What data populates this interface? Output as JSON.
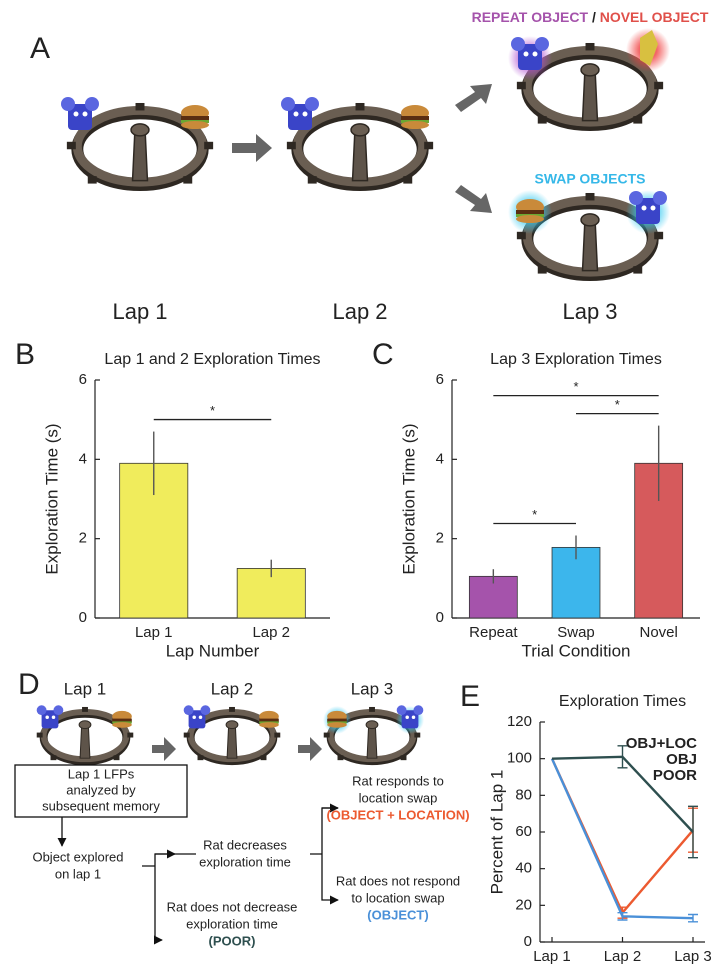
{
  "panel_a": {
    "label": "A",
    "repeat": "REPEAT OBJECT",
    "slash": "/",
    "novel": "NOVEL OBJECT",
    "swap": "SWAP OBJECTS",
    "laps": [
      "Lap 1",
      "Lap 2",
      "Lap 3"
    ]
  },
  "panel_d": {
    "label": "D",
    "laps": [
      "Lap 1",
      "Lap 2",
      "Lap 3"
    ],
    "start": [
      "Lap 1 LFPs",
      "analyzed by",
      "subsequent memory"
    ],
    "explored": [
      "Object explored",
      "on lap 1"
    ],
    "decrease": [
      "Rat decreases",
      "exploration time"
    ],
    "no_decrease": [
      "Rat does not decrease",
      "exploration time"
    ],
    "poor": "(POOR)",
    "responds": [
      "Rat responds to",
      "location swap"
    ],
    "objloc": "(OBJECT + LOCATION)",
    "no_respond": [
      "Rat does not respond",
      "to location swap"
    ],
    "obj": "(OBJECT)"
  },
  "chart_data": [
    {
      "type": "bar",
      "panel": "B",
      "title": "Lap 1 and 2 Exploration Times",
      "x_label": "Lap Number",
      "y_label": "Exploration Time (s)",
      "categories": [
        "Lap 1",
        "Lap 2"
      ],
      "values": [
        3.9,
        1.25
      ],
      "errors": [
        0.8,
        0.22
      ],
      "colors": [
        "#f0ec5c",
        "#f0ec5c"
      ],
      "ylim": [
        0,
        6
      ],
      "yticks": [
        0,
        2,
        4,
        6
      ],
      "significance": [
        {
          "label": "*",
          "from": 0,
          "to": 1
        }
      ]
    },
    {
      "type": "bar",
      "panel": "C",
      "title": "Lap 3 Exploration Times",
      "x_label": "Trial Condition",
      "y_label": "Exploration Time (s)",
      "categories": [
        "Repeat",
        "Swap",
        "Novel"
      ],
      "values": [
        1.05,
        1.78,
        3.9
      ],
      "errors": [
        0.18,
        0.3,
        0.95
      ],
      "colors": [
        "#a553ab",
        "#3cb6ec",
        "#d65a5c"
      ],
      "ylim": [
        0,
        6
      ],
      "yticks": [
        0,
        2,
        4,
        6
      ],
      "significance": [
        {
          "label": "*",
          "from": 0,
          "to": 1
        },
        {
          "label": "*",
          "from": 1,
          "to": 2
        },
        {
          "label": "*",
          "from": 0,
          "to": 2
        }
      ]
    },
    {
      "type": "line",
      "panel": "E",
      "title": "Exploration Times",
      "y_label": "Percent of Lap 1",
      "categories": [
        "Lap 1",
        "Lap 2",
        "Lap 3"
      ],
      "series": [
        {
          "name": "OBJ+LOC",
          "color": "#ec5a30",
          "values": [
            100,
            16,
            61
          ],
          "errors": [
            null,
            3,
            12
          ]
        },
        {
          "name": "OBJ",
          "color": "#4a90d8",
          "values": [
            100,
            14,
            13
          ],
          "errors": [
            null,
            2,
            2
          ]
        },
        {
          "name": "POOR",
          "color": "#2e4f4f",
          "values": [
            100,
            101,
            60
          ],
          "errors": [
            null,
            6,
            14
          ]
        }
      ],
      "ylim": [
        0,
        120
      ],
      "yticks": [
        0,
        20,
        40,
        60,
        80,
        100,
        120
      ],
      "legend": "upper right"
    }
  ]
}
